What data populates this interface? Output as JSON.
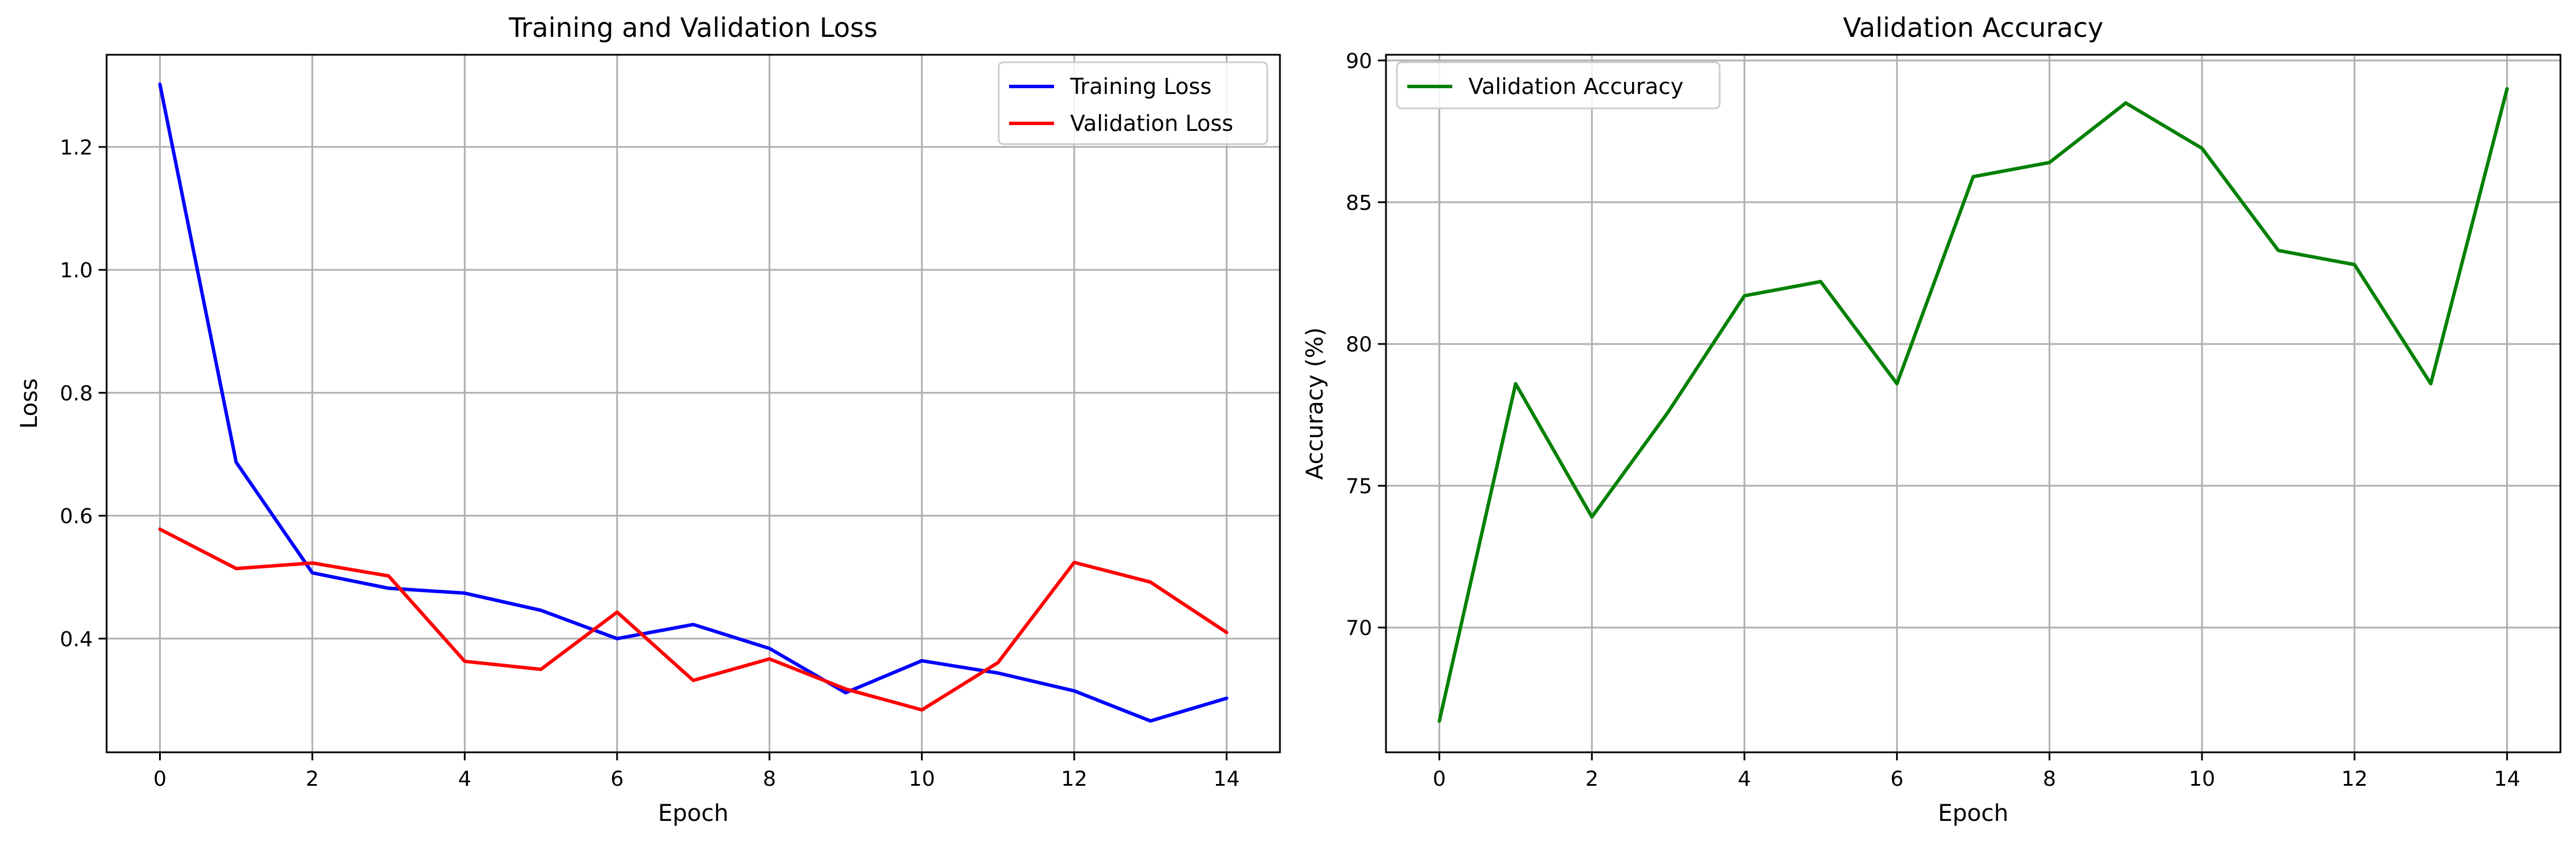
{
  "chart_data": [
    {
      "type": "line",
      "title": "Training and Validation Loss",
      "xlabel": "Epoch",
      "ylabel": "Loss",
      "x": [
        0,
        1,
        2,
        3,
        4,
        5,
        6,
        7,
        8,
        9,
        10,
        11,
        12,
        13,
        14
      ],
      "xlim": [
        -0.7,
        14.7
      ],
      "ylim": [
        0.215,
        1.35
      ],
      "xticks": [
        0,
        2,
        4,
        6,
        8,
        10,
        12,
        14
      ],
      "yticks": [
        0.4,
        0.6,
        0.8,
        1.0,
        1.2
      ],
      "ytick_labels": [
        "0.4",
        "0.6",
        "0.8",
        "1.0",
        "1.2"
      ],
      "grid": true,
      "legend_position": "top-right",
      "series": [
        {
          "name": "Training Loss",
          "color": "#0000ff",
          "values": [
            1.302,
            0.687,
            0.507,
            0.482,
            0.474,
            0.446,
            0.4,
            0.423,
            0.384,
            0.312,
            0.364,
            0.344,
            0.315,
            0.266,
            0.303
          ]
        },
        {
          "name": "Validation Loss",
          "color": "#ff0000",
          "values": [
            0.578,
            0.514,
            0.523,
            0.502,
            0.363,
            0.35,
            0.443,
            0.332,
            0.367,
            0.318,
            0.284,
            0.361,
            0.524,
            0.492,
            0.41
          ]
        }
      ]
    },
    {
      "type": "line",
      "title": "Validation Accuracy",
      "xlabel": "Epoch",
      "ylabel": "Accuracy (%)",
      "x": [
        0,
        1,
        2,
        3,
        4,
        5,
        6,
        7,
        8,
        9,
        10,
        11,
        12,
        13,
        14
      ],
      "xlim": [
        -0.7,
        14.7
      ],
      "ylim": [
        65.6,
        90.2
      ],
      "xticks": [
        0,
        2,
        4,
        6,
        8,
        10,
        12,
        14
      ],
      "yticks": [
        70,
        75,
        80,
        85,
        90
      ],
      "ytick_labels": [
        "70",
        "75",
        "80",
        "85",
        "90"
      ],
      "grid": true,
      "legend_position": "top-left",
      "series": [
        {
          "name": "Validation Accuracy",
          "color": "#008000",
          "values": [
            66.7,
            78.6,
            73.9,
            77.6,
            81.7,
            82.2,
            78.6,
            85.9,
            86.4,
            88.5,
            86.9,
            83.3,
            82.8,
            78.6,
            89.0
          ]
        }
      ]
    }
  ]
}
